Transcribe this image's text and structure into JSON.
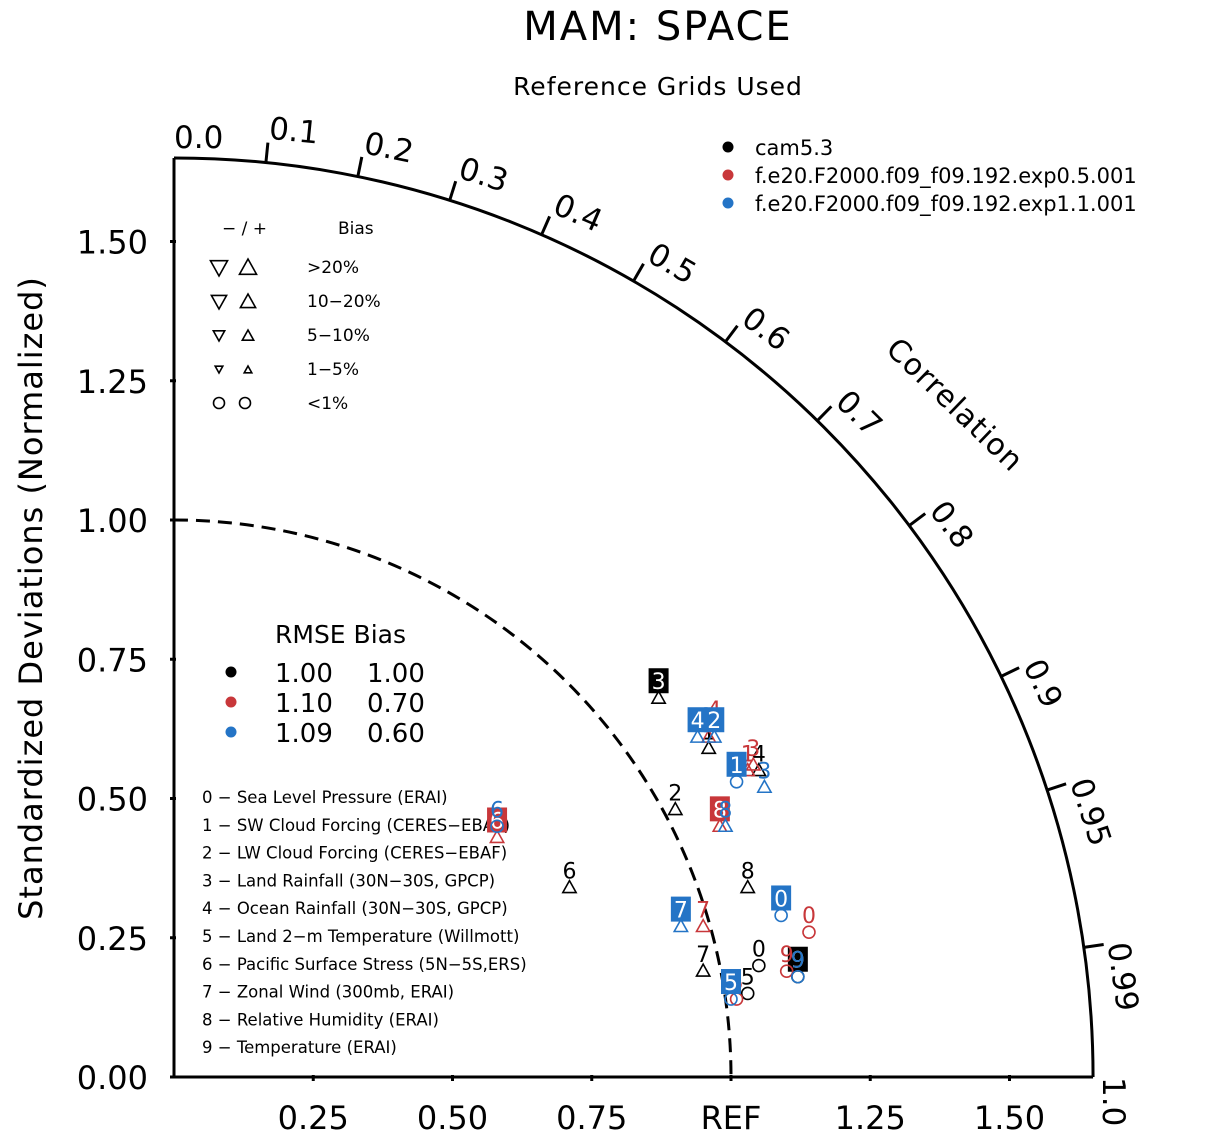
{
  "chart_data": {
    "type": "taylor_diagram",
    "title": "MAM: SPACE",
    "subtitle": "Reference Grids Used",
    "ylabel": "Standardized Deviations (Normalized)",
    "radial_axis": {
      "range": [
        0,
        1.65
      ],
      "y_tick_labels": [
        "0.00",
        "0.25",
        "0.50",
        "0.75",
        "1.00",
        "1.25",
        "1.50"
      ],
      "x_tick_labels": [
        "0.25",
        "0.50",
        "0.75",
        "REF",
        "1.25",
        "1.50"
      ],
      "ref_value": 1.0
    },
    "correlation_axis": {
      "label": "Correlation",
      "ticks": [
        {
          "value": 0.0,
          "label": "0.0"
        },
        {
          "value": 0.1,
          "label": "0.1"
        },
        {
          "value": 0.2,
          "label": "0.2"
        },
        {
          "value": 0.3,
          "label": "0.3"
        },
        {
          "value": 0.4,
          "label": "0.4"
        },
        {
          "value": 0.5,
          "label": "0.5"
        },
        {
          "value": 0.6,
          "label": "0.6"
        },
        {
          "value": 0.7,
          "label": "0.7"
        },
        {
          "value": 0.8,
          "label": "0.8"
        },
        {
          "value": 0.9,
          "label": "0.9"
        },
        {
          "value": 0.95,
          "label": "0.95"
        },
        {
          "value": 0.99,
          "label": "0.99"
        },
        {
          "value": 1.0,
          "label": "1.0"
        }
      ]
    },
    "series": [
      {
        "name": "cam5.3",
        "color": "#000000",
        "points": [
          {
            "id": "0",
            "x": 1.05,
            "y": 0.2,
            "marker": "circle"
          },
          {
            "id": "1",
            "x": 0.96,
            "y": 0.59,
            "marker": "triangle-up"
          },
          {
            "id": "2",
            "x": 0.9,
            "y": 0.48,
            "marker": "triangle-up"
          },
          {
            "id": "3",
            "x": 0.87,
            "y": 0.68,
            "marker": "triangle-up",
            "boxed": true
          },
          {
            "id": "4",
            "x": 1.05,
            "y": 0.55,
            "marker": "triangle-up"
          },
          {
            "id": "5",
            "x": 1.03,
            "y": 0.15,
            "marker": "circle"
          },
          {
            "id": "6",
            "x": 0.71,
            "y": 0.34,
            "marker": "triangle-up"
          },
          {
            "id": "7",
            "x": 0.95,
            "y": 0.19,
            "marker": "triangle-up"
          },
          {
            "id": "8",
            "x": 1.03,
            "y": 0.34,
            "marker": "triangle-up"
          },
          {
            "id": "9",
            "x": 1.12,
            "y": 0.18,
            "marker": "circle",
            "boxed": true
          }
        ]
      },
      {
        "name": "f.e20.F2000.f09_f09.192.exp0.5.001",
        "color": "#c8373a",
        "points": [
          {
            "id": "0",
            "x": 1.14,
            "y": 0.26,
            "marker": "circle"
          },
          {
            "id": "1",
            "x": 1.03,
            "y": 0.55,
            "marker": "triangle-up"
          },
          {
            "id": "2",
            "x": 0.96,
            "y": 0.61,
            "marker": "triangle-up"
          },
          {
            "id": "3",
            "x": 1.04,
            "y": 0.56,
            "marker": "triangle-up"
          },
          {
            "id": "4",
            "x": 0.97,
            "y": 0.63,
            "marker": "triangle-up"
          },
          {
            "id": "5",
            "x": 1.01,
            "y": 0.14,
            "marker": "circle"
          },
          {
            "id": "6",
            "x": 0.58,
            "y": 0.43,
            "marker": "triangle-up",
            "boxed": true
          },
          {
            "id": "7",
            "x": 0.95,
            "y": 0.27,
            "marker": "triangle-up"
          },
          {
            "id": "8",
            "x": 0.98,
            "y": 0.45,
            "marker": "triangle-up",
            "boxed": true
          },
          {
            "id": "9",
            "x": 1.1,
            "y": 0.19,
            "marker": "circle"
          }
        ]
      },
      {
        "name": "f.e20.F2000.f09_f09.192.exp1.1.001",
        "color": "#2474c6",
        "points": [
          {
            "id": "0",
            "x": 1.09,
            "y": 0.29,
            "marker": "circle",
            "boxed": true
          },
          {
            "id": "1",
            "x": 1.01,
            "y": 0.53,
            "marker": "circle",
            "boxed": true
          },
          {
            "id": "2",
            "x": 0.97,
            "y": 0.61,
            "marker": "triangle-up",
            "boxed": true
          },
          {
            "id": "3",
            "x": 1.06,
            "y": 0.52,
            "marker": "triangle-up"
          },
          {
            "id": "4",
            "x": 0.94,
            "y": 0.61,
            "marker": "triangle-up",
            "boxed": true
          },
          {
            "id": "5",
            "x": 1.0,
            "y": 0.14,
            "marker": "circle",
            "boxed": true
          },
          {
            "id": "6",
            "x": 0.58,
            "y": 0.45,
            "marker": "circle"
          },
          {
            "id": "7",
            "x": 0.91,
            "y": 0.27,
            "marker": "triangle-up",
            "boxed": true
          },
          {
            "id": "8",
            "x": 0.99,
            "y": 0.45,
            "marker": "triangle-up"
          },
          {
            "id": "9",
            "x": 1.12,
            "y": 0.18,
            "marker": "circle"
          }
        ]
      }
    ],
    "legend": {
      "placement": "top-right",
      "entries": [
        "cam5.3",
        "f.e20.F2000.f09_f09.192.exp0.5.001",
        "f.e20.F2000.f09_f09.192.exp1.1.001"
      ]
    },
    "bias_key": {
      "header_left": "− / +",
      "header_right": "Bias",
      "rows": [
        {
          "label": ">20%",
          "size": "xl"
        },
        {
          "label": "10−20%",
          "size": "l"
        },
        {
          "label": "5−10%",
          "size": "m"
        },
        {
          "label": "1−5%",
          "size": "s"
        },
        {
          "label": "<1%",
          "size": "circle"
        }
      ]
    },
    "rmse_table": {
      "header": "RMSE Bias",
      "rows": [
        {
          "color": "#000000",
          "rmse": "1.00",
          "bias": "1.00"
        },
        {
          "color": "#c8373a",
          "rmse": "1.10",
          "bias": "0.70"
        },
        {
          "color": "#2474c6",
          "rmse": "1.09",
          "bias": "0.60"
        }
      ]
    },
    "variables": [
      "0 − Sea Level Pressure (ERAI)",
      "1 − SW Cloud Forcing (CERES−EBAF)",
      "2 − LW Cloud Forcing (CERES−EBAF)",
      "3 − Land Rainfall (30N−30S, GPCP)",
      "4 − Ocean Rainfall (30N−30S, GPCP)",
      "5 − Land 2−m Temperature (Willmott)",
      "6 − Pacific Surface Stress (5N−5S,ERS)",
      "7 − Zonal Wind (300mb, ERAI)",
      "8 − Relative Humidity (ERAI)",
      "9 − Temperature (ERAI)"
    ]
  }
}
